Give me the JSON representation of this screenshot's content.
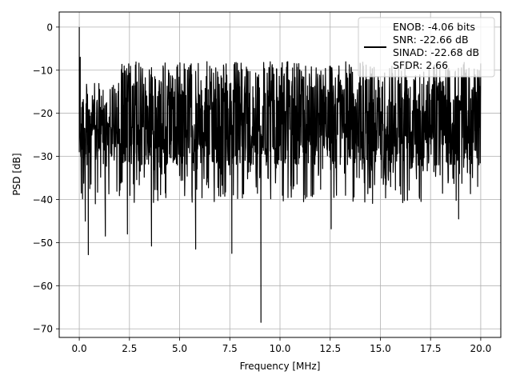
{
  "chart_data": {
    "type": "line",
    "title": "",
    "xlabel": "Frequency [MHz]",
    "ylabel": "PSD [dB]",
    "xlim": [
      -1.0,
      21.0
    ],
    "ylim": [
      -72,
      3.5
    ],
    "grid": true,
    "legend_position": "top-right",
    "x_ticks": [
      0.0,
      2.5,
      5.0,
      7.5,
      10.0,
      12.5,
      15.0,
      17.5,
      20.0
    ],
    "x_tick_labels": [
      "0.0",
      "2.5",
      "5.0",
      "7.5",
      "10.0",
      "12.5",
      "15.0",
      "17.5",
      "20.0"
    ],
    "y_ticks": [
      0,
      -10,
      -20,
      -30,
      -40,
      -50,
      -60,
      -70
    ],
    "y_tick_labels": [
      "0",
      "−10",
      "−20",
      "−30",
      "−40",
      "−50",
      "−60",
      "−70"
    ],
    "series": [
      {
        "legend_lines": [
          "ENOB: -4.06 bits",
          "SNR: -22.66 dB",
          "SINAD: -22.68 dB",
          "SFDR: 2.66"
        ],
        "color": "#000000",
        "description": "noise-like power spectral density",
        "points": [
          {
            "x": 0.0,
            "y": 0.0
          },
          {
            "x": 0.02,
            "y": -16.5
          },
          {
            "x": 0.05,
            "y": -7.0
          },
          {
            "x": 0.1,
            "y": -38.5
          },
          {
            "x": 0.2,
            "y": -28.0
          },
          {
            "x": 0.3,
            "y": -45.0
          },
          {
            "x": 0.45,
            "y": -52.8
          },
          {
            "x": 0.8,
            "y": -41.0
          },
          {
            "x": 1.3,
            "y": -48.5
          },
          {
            "x": 2.4,
            "y": -48.0
          },
          {
            "x": 3.6,
            "y": -50.8
          },
          {
            "x": 5.8,
            "y": -51.5
          },
          {
            "x": 7.6,
            "y": -52.5
          },
          {
            "x": 9.05,
            "y": -68.5
          },
          {
            "x": 12.55,
            "y": -46.8
          },
          {
            "x": 18.9,
            "y": -44.5
          }
        ],
        "upper_envelope": -8.0,
        "lower_envelope": -32.0
      }
    ]
  }
}
